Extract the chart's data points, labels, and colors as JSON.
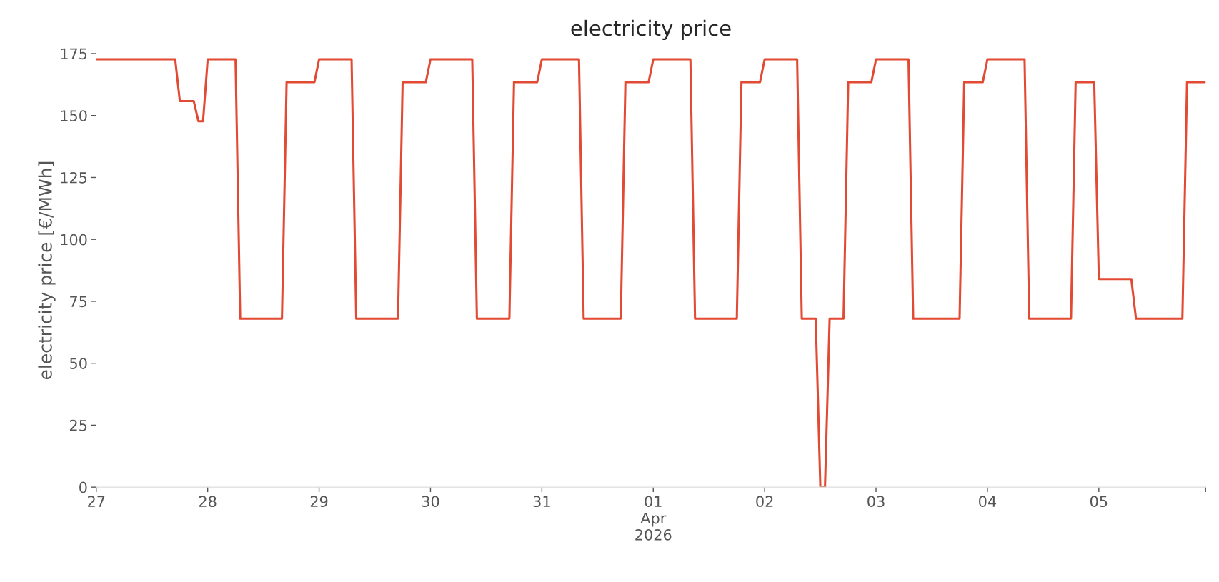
{
  "chart_data": {
    "type": "line",
    "title": "electricity price",
    "ylabel": "electricity price [€/MWh]",
    "xlim": [
      "2026-03-27T00:00",
      "2026-04-05T23:00"
    ],
    "xticks": [
      {
        "value": "2026-03-27",
        "label": "27"
      },
      {
        "value": "2026-03-28",
        "label": "28"
      },
      {
        "value": "2026-03-29",
        "label": "29"
      },
      {
        "value": "2026-03-30",
        "label": "30"
      },
      {
        "value": "2026-03-31",
        "label": "31"
      },
      {
        "value": "2026-04-01",
        "label": "01\nApr\n2026"
      },
      {
        "value": "2026-04-02",
        "label": "02"
      },
      {
        "value": "2026-04-03",
        "label": "03"
      },
      {
        "value": "2026-04-04",
        "label": "04"
      },
      {
        "value": "2026-04-05",
        "label": "05"
      },
      {
        "value": "2026-04-05T23:00",
        "label": null
      }
    ],
    "ylim": [
      0,
      175
    ],
    "yticks": [
      0,
      25,
      50,
      75,
      100,
      125,
      150,
      175
    ],
    "grid": false,
    "line_style": "solid",
    "marker": "none",
    "series": [
      {
        "color": "#e24a33",
        "x": [
          "2026-03-27T00:00",
          "2026-03-27T17:00",
          "2026-03-27T18:00",
          "2026-03-27T21:00",
          "2026-03-27T22:00",
          "2026-03-27T23:00",
          "2026-03-28T00:00",
          "2026-03-28T06:00",
          "2026-03-28T07:00",
          "2026-03-28T16:00",
          "2026-03-28T17:00",
          "2026-03-28T23:00",
          "2026-03-29T00:00",
          "2026-03-29T07:00",
          "2026-03-29T08:00",
          "2026-03-29T17:00",
          "2026-03-29T18:00",
          "2026-03-29T23:00",
          "2026-03-30T00:00",
          "2026-03-30T09:00",
          "2026-03-30T10:00",
          "2026-03-30T17:00",
          "2026-03-30T18:00",
          "2026-03-30T23:00",
          "2026-03-31T00:00",
          "2026-03-31T08:00",
          "2026-03-31T09:00",
          "2026-03-31T17:00",
          "2026-03-31T18:00",
          "2026-03-31T23:00",
          "2026-04-01T00:00",
          "2026-04-01T08:00",
          "2026-04-01T09:00",
          "2026-04-01T18:00",
          "2026-04-01T19:00",
          "2026-04-01T23:00",
          "2026-04-02T00:00",
          "2026-04-02T07:00",
          "2026-04-02T08:00",
          "2026-04-02T11:00",
          "2026-04-02T12:00",
          "2026-04-02T13:00",
          "2026-04-02T14:00",
          "2026-04-02T17:00",
          "2026-04-02T18:00",
          "2026-04-02T23:00",
          "2026-04-03T00:00",
          "2026-04-03T07:00",
          "2026-04-03T08:00",
          "2026-04-03T18:00",
          "2026-04-03T19:00",
          "2026-04-03T23:00",
          "2026-04-04T00:00",
          "2026-04-04T08:00",
          "2026-04-04T09:00",
          "2026-04-04T18:00",
          "2026-04-04T19:00",
          "2026-04-04T23:00",
          "2026-04-05T00:00",
          "2026-04-05T07:00",
          "2026-04-05T08:00",
          "2026-04-05T18:00",
          "2026-04-05T19:00",
          "2026-04-05T23:00"
        ],
        "values": [
          172.7,
          172.7,
          155.8,
          155.8,
          147.7,
          147.7,
          172.7,
          172.7,
          68,
          68,
          163.5,
          163.5,
          172.7,
          172.7,
          68,
          68,
          163.5,
          163.5,
          172.7,
          172.7,
          68,
          68,
          163.5,
          163.5,
          172.7,
          172.7,
          68,
          68,
          163.5,
          163.5,
          172.7,
          172.7,
          68,
          68,
          163.5,
          163.5,
          172.7,
          172.7,
          68,
          68,
          0,
          0,
          68,
          68,
          163.5,
          163.5,
          172.7,
          172.7,
          68,
          68,
          163.5,
          163.5,
          172.7,
          172.7,
          68,
          68,
          163.5,
          163.5,
          84,
          84,
          68,
          68,
          163.5,
          163.5
        ]
      }
    ]
  }
}
